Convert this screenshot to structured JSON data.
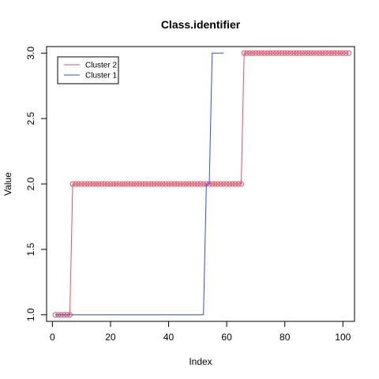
{
  "chart_data": {
    "type": "line",
    "title": "Class.identifier",
    "xlabel": "Index",
    "ylabel": "Value",
    "xlim": [
      -2,
      104
    ],
    "ylim": [
      0.95,
      3.05
    ],
    "xticks": [
      0,
      20,
      40,
      60,
      80,
      100
    ],
    "yticks": [
      1.0,
      1.5,
      2.0,
      2.5,
      3.0
    ],
    "xtick_labels": [
      "0",
      "20",
      "40",
      "60",
      "80",
      "100"
    ],
    "ytick_labels": [
      "1.0",
      "1.5",
      "2.0",
      "2.5",
      "3.0"
    ],
    "grid": false,
    "legend_position": "top-left",
    "series": [
      {
        "name": "Cluster 2",
        "color": "#DF536B",
        "style": "line+points",
        "x": [
          1,
          2,
          3,
          4,
          5,
          6,
          7,
          8,
          9,
          10,
          11,
          12,
          13,
          14,
          15,
          16,
          17,
          18,
          19,
          20,
          21,
          22,
          23,
          24,
          25,
          26,
          27,
          28,
          29,
          30,
          31,
          32,
          33,
          34,
          35,
          36,
          37,
          38,
          39,
          40,
          41,
          42,
          43,
          44,
          45,
          46,
          47,
          48,
          49,
          50,
          51,
          52,
          53,
          54,
          55,
          56,
          57,
          58,
          59,
          60,
          61,
          62,
          63,
          64,
          65,
          66,
          67,
          68,
          69,
          70,
          71,
          72,
          73,
          74,
          75,
          76,
          77,
          78,
          79,
          80,
          81,
          82,
          83,
          84,
          85,
          86,
          87,
          88,
          89,
          90,
          91,
          92,
          93,
          94,
          95,
          96,
          97,
          98,
          99,
          100,
          101,
          102
        ],
        "values": [
          1,
          1,
          1,
          1,
          1,
          1,
          2,
          2,
          2,
          2,
          2,
          2,
          2,
          2,
          2,
          2,
          2,
          2,
          2,
          2,
          2,
          2,
          2,
          2,
          2,
          2,
          2,
          2,
          2,
          2,
          2,
          2,
          2,
          2,
          2,
          2,
          2,
          2,
          2,
          2,
          2,
          2,
          2,
          2,
          2,
          2,
          2,
          2,
          2,
          2,
          2,
          2,
          2,
          2,
          2,
          2,
          2,
          2,
          2,
          2,
          2,
          2,
          2,
          2,
          2,
          3,
          3,
          3,
          3,
          3,
          3,
          3,
          3,
          3,
          3,
          3,
          3,
          3,
          3,
          3,
          3,
          3,
          3,
          3,
          3,
          3,
          3,
          3,
          3,
          3,
          3,
          3,
          3,
          3,
          3,
          3,
          3,
          3,
          3,
          3,
          3,
          3
        ]
      },
      {
        "name": "Cluster 1",
        "color": "#2E4FE8",
        "style": "line",
        "x": [
          1,
          2,
          3,
          4,
          5,
          6,
          7,
          8,
          9,
          10,
          11,
          12,
          13,
          14,
          15,
          16,
          17,
          18,
          19,
          20,
          21,
          22,
          23,
          24,
          25,
          26,
          27,
          28,
          29,
          30,
          31,
          32,
          33,
          34,
          35,
          36,
          37,
          38,
          39,
          40,
          41,
          42,
          43,
          44,
          45,
          46,
          47,
          48,
          49,
          50,
          51,
          52,
          53,
          54,
          55,
          56,
          57,
          58,
          59
        ],
        "values": [
          1,
          1,
          1,
          1,
          1,
          1,
          1,
          1,
          1,
          1,
          1,
          1,
          1,
          1,
          1,
          1,
          1,
          1,
          1,
          1,
          1,
          1,
          1,
          1,
          1,
          1,
          1,
          1,
          1,
          1,
          1,
          1,
          1,
          1,
          1,
          1,
          1,
          1,
          1,
          1,
          1,
          1,
          1,
          1,
          1,
          1,
          1,
          1,
          1,
          1,
          1,
          1,
          2,
          2,
          3,
          3,
          3,
          3,
          3
        ]
      }
    ]
  }
}
